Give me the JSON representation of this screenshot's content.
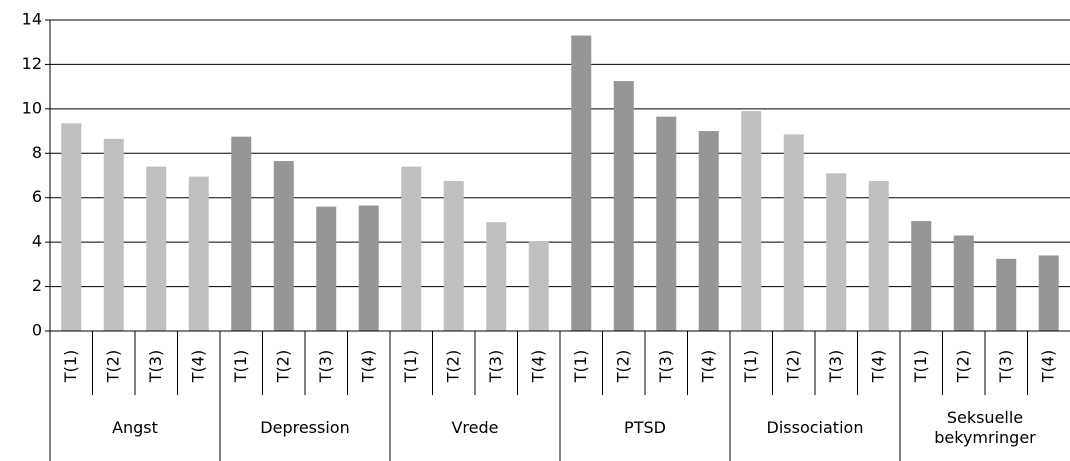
{
  "chart_data": {
    "type": "bar",
    "categories": [
      "T(1)",
      "T(2)",
      "T(3)",
      "T(4)"
    ],
    "groups": [
      {
        "name": "Angst",
        "color": "#c0c0c0",
        "values": [
          9.35,
          8.65,
          7.4,
          6.95
        ]
      },
      {
        "name": "Depression",
        "color": "#969696",
        "values": [
          8.75,
          7.65,
          5.6,
          5.65
        ]
      },
      {
        "name": "Vrede",
        "color": "#c0c0c0",
        "values": [
          7.4,
          6.75,
          4.9,
          4.05
        ]
      },
      {
        "name": "PTSD",
        "color": "#969696",
        "values": [
          13.3,
          11.25,
          9.65,
          9.0
        ]
      },
      {
        "name": "Dissociation",
        "color": "#c0c0c0",
        "values": [
          9.9,
          8.85,
          7.1,
          6.75
        ]
      },
      {
        "name": "Seksuelle bekymringer",
        "color": "#969696",
        "values": [
          4.95,
          4.3,
          3.25,
          3.4
        ]
      }
    ],
    "ylim": [
      0,
      14
    ],
    "yticks": [
      0,
      2,
      4,
      6,
      8,
      10,
      12,
      14
    ],
    "grid": true
  }
}
